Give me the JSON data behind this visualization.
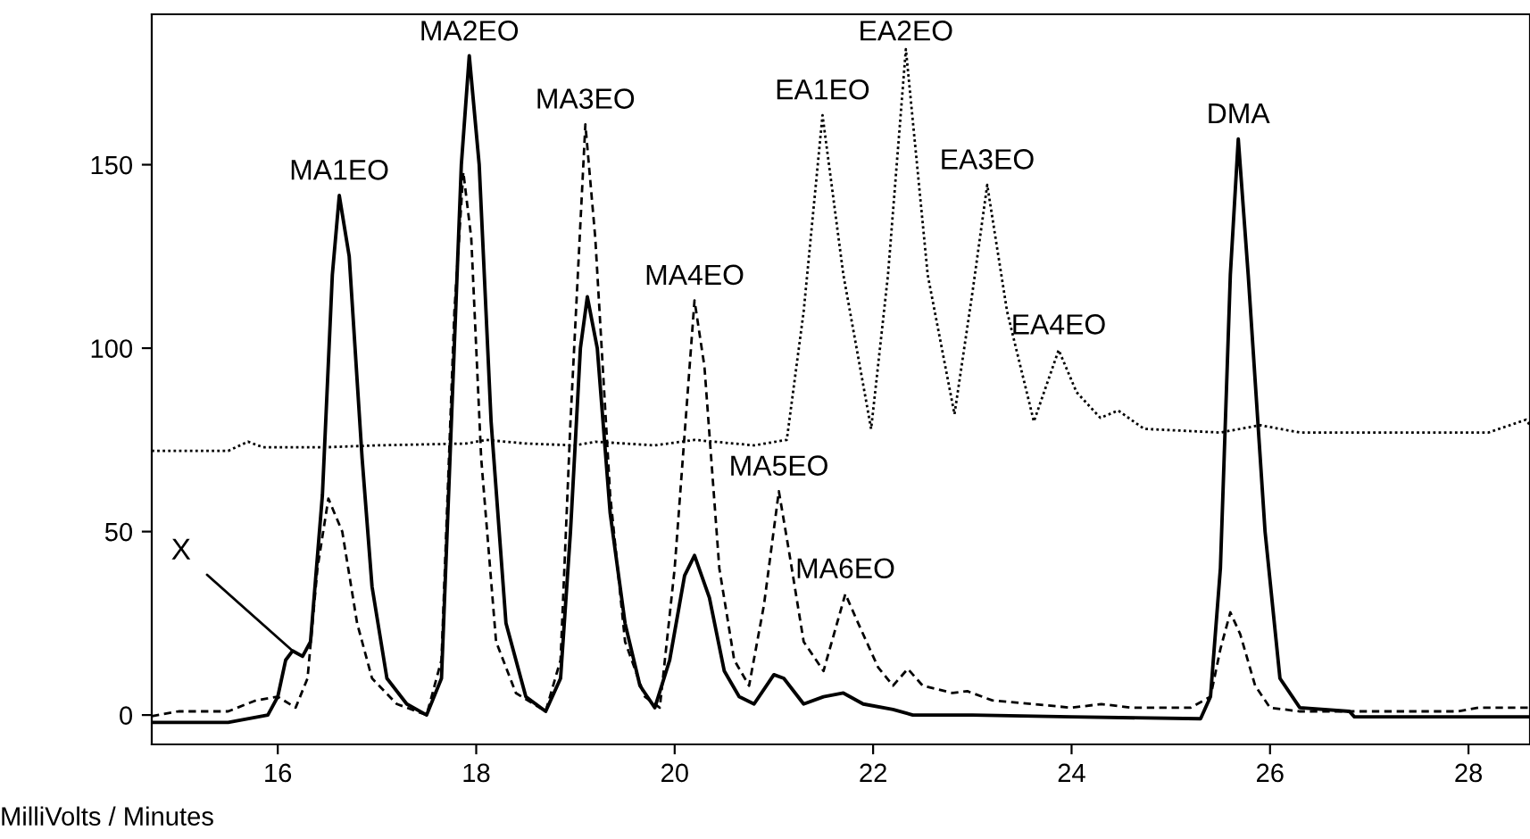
{
  "chart_data": {
    "type": "line",
    "xlabel": "MilliVolts / Minutes",
    "xlim": [
      14.73,
      28.62
    ],
    "ylim": [
      -8,
      191
    ],
    "xticks": [
      16,
      18,
      20,
      22,
      24,
      26,
      28
    ],
    "yticks": [
      0,
      50,
      100,
      150
    ],
    "grid": false,
    "legend": false,
    "marker": "none",
    "series": [
      {
        "color": "#000000",
        "line_style": "solid",
        "x": [
          14.73,
          15.5,
          15.9,
          16.0,
          16.08,
          16.15,
          16.25,
          16.33,
          16.45,
          16.55,
          16.62,
          16.72,
          16.85,
          16.95,
          17.1,
          17.3,
          17.5,
          17.65,
          17.75,
          17.85,
          17.93,
          18.03,
          18.15,
          18.3,
          18.5,
          18.7,
          18.85,
          18.95,
          19.05,
          19.12,
          19.22,
          19.35,
          19.5,
          19.65,
          19.8,
          19.95,
          20.1,
          20.2,
          20.35,
          20.5,
          20.65,
          20.8,
          21.0,
          21.1,
          21.3,
          21.5,
          21.7,
          21.9,
          22.2,
          22.4,
          23.0,
          24.0,
          25.3,
          25.4,
          25.5,
          25.6,
          25.68,
          25.78,
          25.95,
          26.1,
          26.3,
          26.8,
          26.85,
          28.62
        ],
        "values": [
          -2,
          -2,
          0,
          5,
          15,
          17.5,
          16,
          20,
          60,
          120,
          141.6,
          125,
          70,
          35,
          10,
          3,
          0,
          10,
          80,
          150,
          179.7,
          150,
          80,
          25,
          5,
          1,
          10,
          50,
          100,
          114,
          100,
          55,
          25,
          8,
          2,
          15,
          38,
          43.5,
          32,
          12,
          5,
          3,
          11,
          10,
          3,
          5,
          6,
          3,
          1.5,
          0,
          0,
          -0.5,
          -1,
          5,
          40,
          120,
          157,
          120,
          50,
          10,
          2,
          1,
          -0.5,
          -0.5
        ]
      },
      {
        "color": "#000000",
        "line_style": "dashed",
        "x": [
          14.73,
          15.0,
          15.5,
          15.78,
          16.0,
          16.18,
          16.3,
          16.4,
          16.51,
          16.65,
          16.8,
          16.95,
          17.2,
          17.5,
          17.65,
          17.78,
          17.87,
          17.95,
          18.05,
          18.2,
          18.4,
          18.7,
          18.85,
          18.95,
          19.1,
          19.2,
          19.35,
          19.5,
          19.7,
          19.85,
          20.0,
          20.2,
          20.3,
          20.45,
          20.6,
          20.75,
          20.9,
          21.05,
          21.15,
          21.3,
          21.5,
          21.72,
          21.85,
          22.05,
          22.2,
          22.35,
          22.5,
          22.8,
          22.95,
          23.2,
          23.6,
          24.0,
          24.3,
          24.6,
          25.2,
          25.4,
          25.5,
          25.6,
          25.7,
          25.85,
          26.0,
          26.3,
          27.0,
          27.9,
          28.1,
          28.62
        ],
        "values": [
          -0.3,
          1,
          1,
          4,
          5,
          2,
          10,
          40,
          59,
          50,
          25,
          10,
          3,
          0,
          15,
          110,
          148,
          130,
          70,
          20,
          6,
          1,
          15,
          80,
          161,
          130,
          60,
          20,
          5,
          2,
          40,
          113,
          95,
          40,
          15,
          8,
          30,
          61,
          45,
          20,
          12,
          33,
          25,
          13,
          8,
          12.6,
          8,
          6,
          6.5,
          4,
          3,
          2,
          3,
          2,
          2,
          5,
          18,
          28,
          22,
          8,
          2,
          1,
          1,
          1,
          2,
          2
        ]
      },
      {
        "color": "#000000",
        "line_style": "dotted",
        "x": [
          14.73,
          15.5,
          15.7,
          15.85,
          16.5,
          17.0,
          17.9,
          18.1,
          18.5,
          19.0,
          19.2,
          19.8,
          20.2,
          20.8,
          21.13,
          21.3,
          21.49,
          21.7,
          21.98,
          22.15,
          22.33,
          22.55,
          22.82,
          23.0,
          23.15,
          23.35,
          23.62,
          23.87,
          24.05,
          24.29,
          24.47,
          24.73,
          25.5,
          25.9,
          26.3,
          28.2,
          28.58,
          28.62
        ],
        "values": [
          72,
          72,
          74.5,
          73,
          73,
          73.5,
          74,
          75,
          74,
          73.5,
          74.5,
          73.5,
          75,
          73.5,
          75,
          110,
          163.5,
          120,
          78,
          120,
          181.5,
          120,
          82,
          115,
          144.5,
          110,
          80,
          99.5,
          88,
          81,
          83,
          78,
          77,
          79,
          77,
          77,
          80.5,
          79
        ]
      }
    ],
    "annotations": [
      {
        "text": "MA1EO",
        "x": 16.62,
        "y": 141.6
      },
      {
        "text": "MA2EO",
        "x": 17.93,
        "y": 179.7
      },
      {
        "text": "MA3EO",
        "x": 19.1,
        "y": 161
      },
      {
        "text": "MA4EO",
        "x": 20.2,
        "y": 113
      },
      {
        "text": "MA5EO",
        "x": 21.05,
        "y": 61
      },
      {
        "text": "MA6EO",
        "x": 21.72,
        "y": 33
      },
      {
        "text": "EA1EO",
        "x": 21.49,
        "y": 163.5
      },
      {
        "text": "EA2EO",
        "x": 22.33,
        "y": 181.5
      },
      {
        "text": "EA3EO",
        "x": 23.15,
        "y": 144.5
      },
      {
        "text": "EA4EO",
        "x": 23.87,
        "y": 99.5
      },
      {
        "text": "DMA",
        "x": 25.68,
        "y": 157
      },
      {
        "text": "X",
        "x": 16.15,
        "y": 17.5
      }
    ]
  }
}
